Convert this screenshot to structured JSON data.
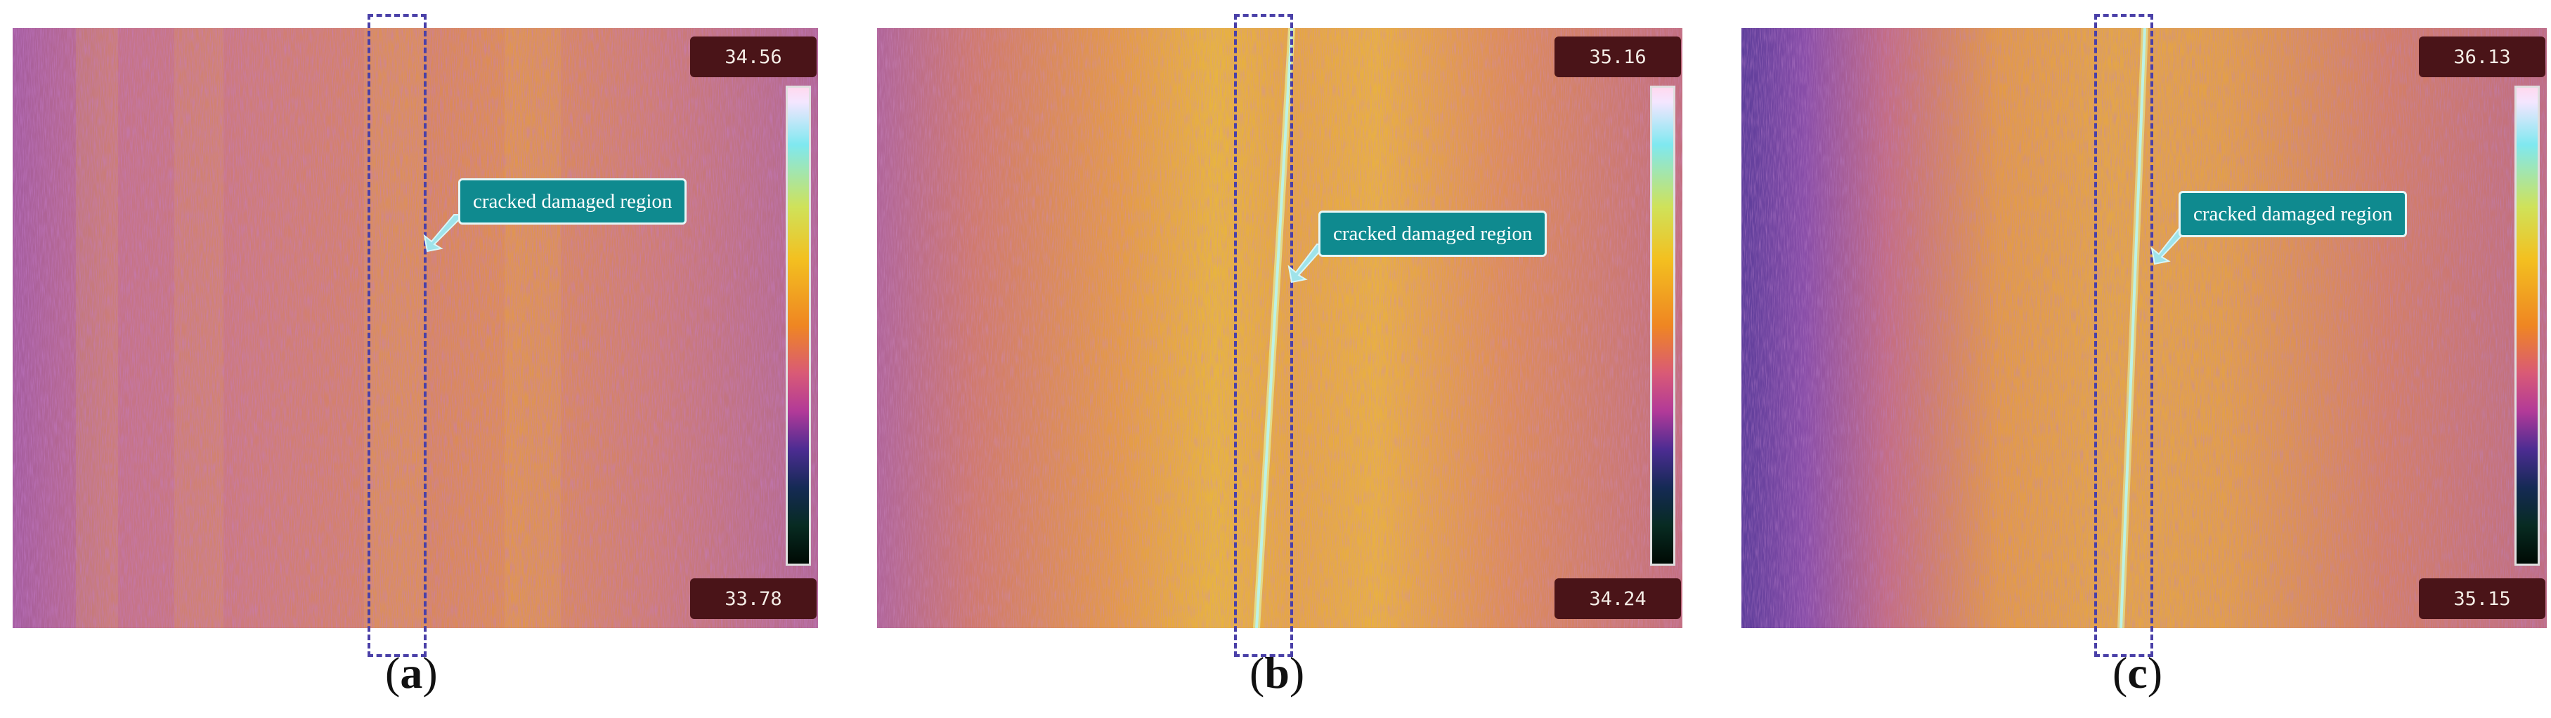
{
  "figure": {
    "panels": [
      {
        "id": "a",
        "label_open": "(",
        "label_letter": "a",
        "label_close": ")",
        "max_temp": "34.56",
        "min_temp": "33.78",
        "annotation": "cracked damaged region",
        "crack_visible": false
      },
      {
        "id": "b",
        "label_open": "(",
        "label_letter": "b",
        "label_close": ")",
        "max_temp": "35.16",
        "min_temp": "34.24",
        "annotation": "cracked damaged region",
        "crack_visible": true
      },
      {
        "id": "c",
        "label_open": "(",
        "label_letter": "c",
        "label_close": ")",
        "max_temp": "36.13",
        "min_temp": "35.15",
        "annotation": "cracked damaged region",
        "crack_visible": true
      }
    ]
  },
  "colors": {
    "highlight_box": "#4a40a8",
    "callout_fill": "#0f8a8f",
    "temp_box_fill": "#4a1418",
    "arrow": "#9fe3ea",
    "crack_line": "#bdf2e6"
  }
}
